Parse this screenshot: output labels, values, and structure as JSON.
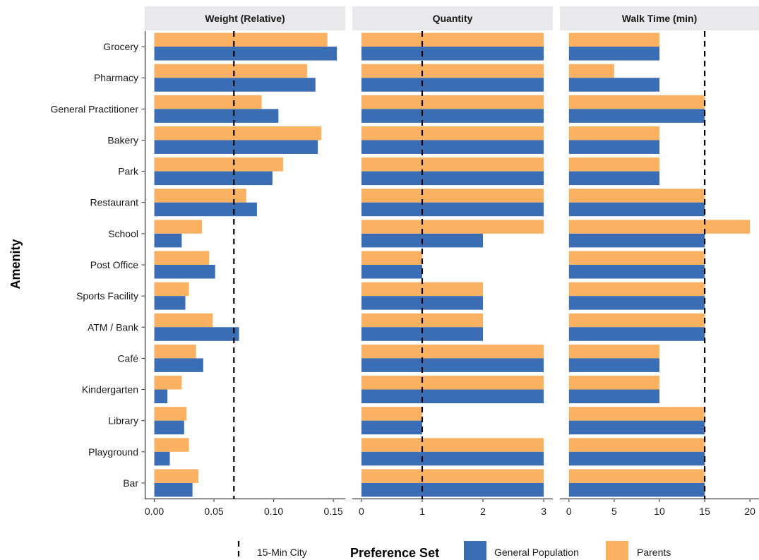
{
  "chart_data": {
    "type": "bar",
    "orientation": "horizontal",
    "y_axis_title": "Amenity",
    "categories": [
      "Grocery",
      "Pharmacy",
      "General Practitioner",
      "Bakery",
      "Park",
      "Restaurant",
      "School",
      "Post Office",
      "Sports Facility",
      "ATM / Bank",
      "Café",
      "Kindergarten",
      "Library",
      "Playground",
      "Bar"
    ],
    "panels": [
      {
        "title": "Weight (Relative)",
        "xlim": [
          -0.008,
          0.16
        ],
        "ticks": [
          0.0,
          0.05,
          0.1,
          0.15
        ],
        "tick_labels": [
          "0.00",
          "0.05",
          "0.10",
          "0.15"
        ],
        "reference_line": 0.0667,
        "series": [
          {
            "name": "Parents",
            "values": [
              0.145,
              0.128,
              0.09,
              0.14,
              0.108,
              0.077,
              0.04,
              0.046,
              0.029,
              0.049,
              0.035,
              0.023,
              0.027,
              0.029,
              0.037
            ]
          },
          {
            "name": "General Population",
            "values": [
              0.153,
              0.135,
              0.104,
              0.137,
              0.099,
              0.086,
              0.023,
              0.051,
              0.026,
              0.071,
              0.041,
              0.011,
              0.025,
              0.013,
              0.032
            ]
          }
        ]
      },
      {
        "title": "Quantity",
        "xlim": [
          -0.15,
          3.15
        ],
        "ticks": [
          0,
          1,
          2,
          3
        ],
        "tick_labels": [
          "0",
          "1",
          "2",
          "3"
        ],
        "reference_line": 1,
        "series": [
          {
            "name": "Parents",
            "values": [
              3,
              3,
              3,
              3,
              3,
              3,
              3,
              1,
              2,
              2,
              3,
              3,
              1,
              3,
              3
            ]
          },
          {
            "name": "General Population",
            "values": [
              3,
              3,
              3,
              3,
              3,
              3,
              2,
              1,
              2,
              2,
              3,
              3,
              1,
              3,
              3
            ]
          }
        ]
      },
      {
        "title": "Walk Time (min)",
        "xlim": [
          -1,
          21
        ],
        "ticks": [
          0,
          5,
          10,
          15,
          20
        ],
        "tick_labels": [
          "0",
          "5",
          "10",
          "15",
          "20"
        ],
        "reference_line": 15,
        "series": [
          {
            "name": "Parents",
            "values": [
              10,
              5,
              15,
              10,
              10,
              15,
              20,
              15,
              15,
              15,
              10,
              10,
              15,
              15,
              15
            ]
          },
          {
            "name": "General Population",
            "values": [
              10,
              10,
              15,
              10,
              10,
              15,
              15,
              15,
              15,
              15,
              10,
              10,
              15,
              15,
              15
            ]
          }
        ]
      }
    ],
    "colors": {
      "General Population": "#3b6db5",
      "Parents": "#fbb162"
    },
    "grid": false,
    "legend": {
      "position": "bottom",
      "line_label": "15-Min City",
      "title": "Preference Set",
      "items": [
        "General Population",
        "Parents"
      ]
    }
  }
}
